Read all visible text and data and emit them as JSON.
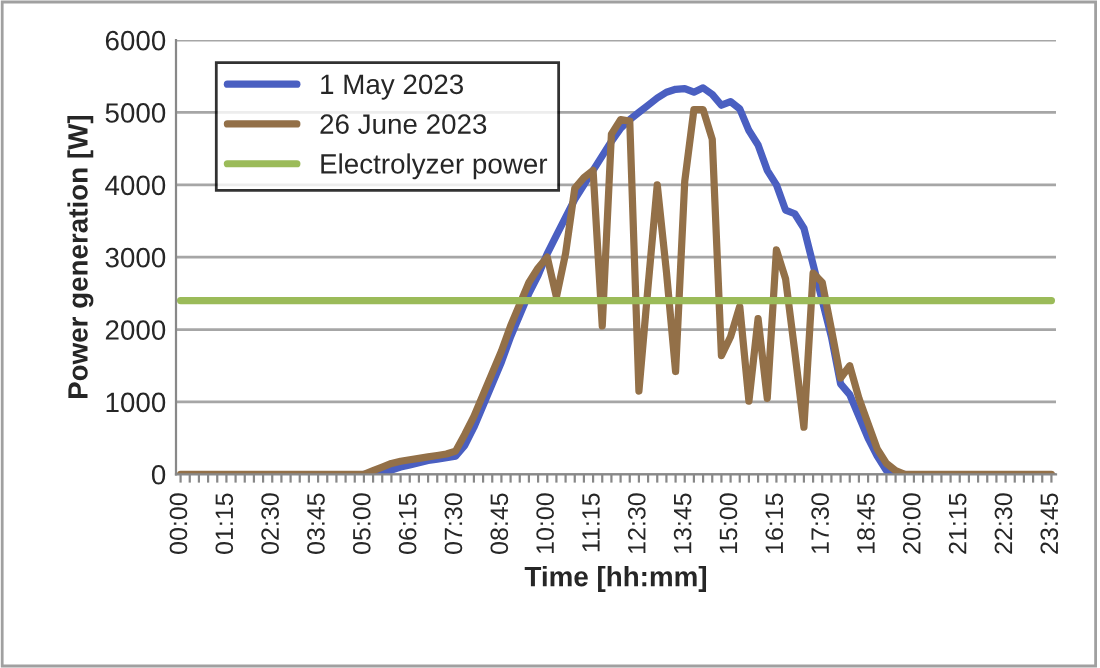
{
  "chart_data": {
    "type": "line",
    "xlabel": "Time [hh:mm]",
    "ylabel": "Power generation [W]",
    "categories": [
      "00:00",
      null,
      null,
      null,
      null,
      "01:15",
      null,
      null,
      null,
      null,
      "02:30",
      null,
      null,
      null,
      null,
      "03:45",
      null,
      null,
      null,
      null,
      "05:00",
      null,
      null,
      null,
      null,
      "06:15",
      null,
      null,
      null,
      null,
      "07:30",
      null,
      null,
      null,
      null,
      "08:45",
      null,
      null,
      null,
      null,
      "10:00",
      null,
      null,
      null,
      null,
      "11:15",
      null,
      null,
      null,
      null,
      "12:30",
      null,
      null,
      null,
      null,
      "13:45",
      null,
      null,
      null,
      null,
      "15:00",
      null,
      null,
      null,
      null,
      "16:15",
      null,
      null,
      null,
      null,
      "17:30",
      null,
      null,
      null,
      null,
      "18:45",
      null,
      null,
      null,
      null,
      "20:00",
      null,
      null,
      null,
      null,
      "21:15",
      null,
      null,
      null,
      null,
      "22:30",
      null,
      null,
      null,
      null,
      "23:45"
    ],
    "series": [
      {
        "name": "1 May 2023",
        "color": "#4a5fc1",
        "values": [
          null,
          null,
          null,
          null,
          null,
          null,
          null,
          null,
          null,
          null,
          null,
          null,
          null,
          null,
          null,
          null,
          null,
          null,
          null,
          null,
          0,
          0,
          20,
          60,
          100,
          130,
          160,
          190,
          210,
          230,
          250,
          400,
          650,
          950,
          1250,
          1550,
          1900,
          2200,
          2500,
          2750,
          3050,
          3300,
          3550,
          3800,
          4000,
          4200,
          4400,
          4600,
          4780,
          4900,
          5000,
          5100,
          5200,
          5280,
          5320,
          5330,
          5280,
          5340,
          5250,
          5100,
          5150,
          5050,
          4750,
          4550,
          4200,
          4000,
          3650,
          3600,
          3400,
          2900,
          2400,
          1900,
          1250,
          1100,
          800,
          500,
          250,
          50,
          0,
          0,
          null,
          null,
          null,
          null,
          null,
          null,
          null,
          null,
          null,
          null,
          null,
          null,
          null,
          null,
          null,
          null
        ]
      },
      {
        "name": "26 June 2023",
        "color": "#937048",
        "values": [
          0,
          0,
          0,
          0,
          0,
          0,
          0,
          0,
          0,
          0,
          0,
          0,
          0,
          0,
          0,
          0,
          0,
          0,
          0,
          0,
          0,
          50,
          100,
          150,
          180,
          200,
          220,
          240,
          260,
          280,
          320,
          550,
          800,
          1100,
          1400,
          1700,
          2050,
          2350,
          2650,
          2850,
          3000,
          2450,
          3050,
          3950,
          4100,
          4200,
          2050,
          4700,
          4900,
          4880,
          1150,
          2600,
          4000,
          2800,
          1420,
          4050,
          5040,
          5040,
          4630,
          1640,
          1900,
          2320,
          1010,
          2150,
          1050,
          3100,
          2700,
          1700,
          650,
          2780,
          2650,
          2000,
          1330,
          1500,
          1050,
          700,
          350,
          150,
          50,
          0,
          0,
          0,
          0,
          0,
          0,
          0,
          0,
          0,
          0,
          0,
          0,
          0,
          0,
          0,
          0,
          0
        ]
      },
      {
        "name": "Electrolyzer power",
        "color": "#9bbb59",
        "values": [
          2400,
          2400,
          2400,
          2400,
          2400,
          2400,
          2400,
          2400,
          2400,
          2400,
          2400,
          2400,
          2400,
          2400,
          2400,
          2400,
          2400,
          2400,
          2400,
          2400,
          2400,
          2400,
          2400,
          2400,
          2400,
          2400,
          2400,
          2400,
          2400,
          2400,
          2400,
          2400,
          2400,
          2400,
          2400,
          2400,
          2400,
          2400,
          2400,
          2400,
          2400,
          2400,
          2400,
          2400,
          2400,
          2400,
          2400,
          2400,
          2400,
          2400,
          2400,
          2400,
          2400,
          2400,
          2400,
          2400,
          2400,
          2400,
          2400,
          2400,
          2400,
          2400,
          2400,
          2400,
          2400,
          2400,
          2400,
          2400,
          2400,
          2400,
          2400,
          2400,
          2400,
          2400,
          2400,
          2400,
          2400,
          2400,
          2400,
          2400,
          2400,
          2400,
          2400,
          2400,
          2400,
          2400,
          2400,
          2400,
          2400,
          2400,
          2400,
          2400,
          2400,
          2400,
          2400,
          2400
        ]
      }
    ],
    "ylim": [
      0,
      6000
    ],
    "yticks": [
      0,
      1000,
      2000,
      3000,
      4000,
      5000,
      6000
    ],
    "grid": "y",
    "legend": "top left",
    "marker": "none",
    "line_style": "solid"
  }
}
